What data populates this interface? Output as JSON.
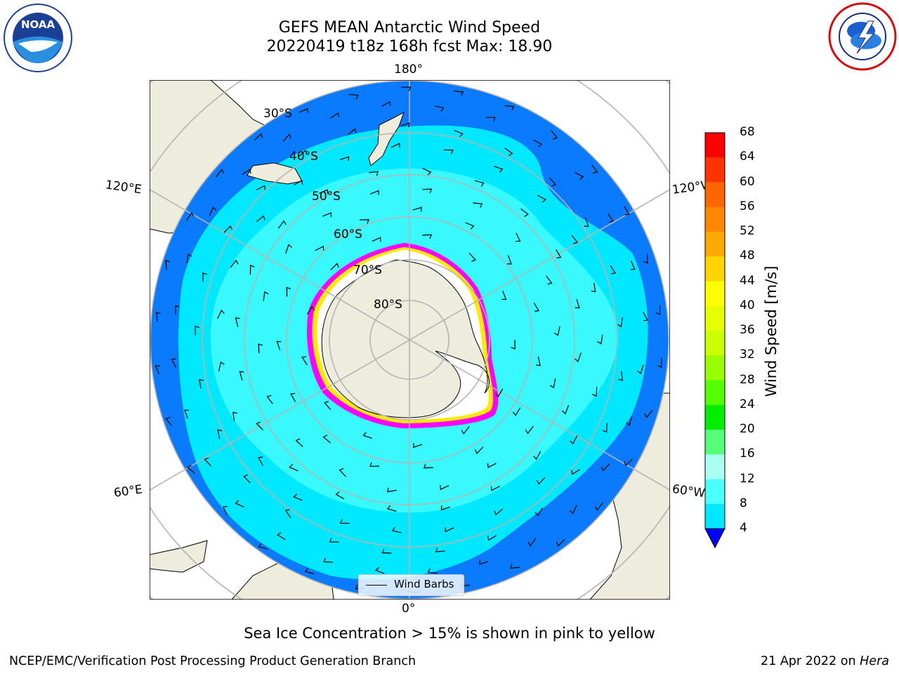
{
  "title": {
    "line1": "GEFS MEAN Antarctic Wind Speed",
    "line2": "20220419 t18z 168h fcst   Max: 18.90"
  },
  "logos": {
    "noaa": {
      "text": "NOAA",
      "ring_text": "NATIONAL OCEANIC AND ATMOSPHERIC ADMINISTRATION · U.S. DEPARTMENT OF COMMERCE"
    },
    "nws": {
      "ring_text": "NATIONAL WEATHER SERVICE"
    }
  },
  "map": {
    "projection": "south polar stereographic",
    "longitude_labels": {
      "top": "180°",
      "bottom": "0°",
      "left_upper": "120°E",
      "left_lower": "60°E",
      "right_upper": "120°W",
      "right_lower": "60°W"
    },
    "latitude_labels": [
      "30°S",
      "40°S",
      "50°S",
      "60°S",
      "70°S",
      "80°S"
    ],
    "legend_label": "Wind Barbs",
    "colors": {
      "land": "#eeecdc",
      "ocean_deep": "#0a7aff",
      "ocean_mid": "#00e8ff",
      "ocean_light": "#4cffff",
      "grid": "#b4b4b4"
    }
  },
  "colorbar": {
    "title": "Wind Speed [m/s]",
    "ticks": [
      "68",
      "64",
      "60",
      "56",
      "52",
      "48",
      "44",
      "40",
      "36",
      "32",
      "28",
      "24",
      "20",
      "16",
      "12",
      "8",
      "4"
    ],
    "colors": [
      "#ff0000",
      "#ff3300",
      "#ff6600",
      "#ff8800",
      "#ffaa00",
      "#ffd400",
      "#ffff00",
      "#e6ff00",
      "#ccff00",
      "#99ff00",
      "#55ff00",
      "#00ee00",
      "#55ff77",
      "#aaffee",
      "#4cffff",
      "#00e8ff",
      "#0a7aff"
    ],
    "under_color": "#0000ff"
  },
  "note": "Sea Ice Concentration > 15% is shown in pink to yellow",
  "footer": {
    "left": "NCEP/EMC/Verification Post Processing Product Generation Branch",
    "date": "21 Apr 2022 on",
    "machine": "Hera"
  }
}
